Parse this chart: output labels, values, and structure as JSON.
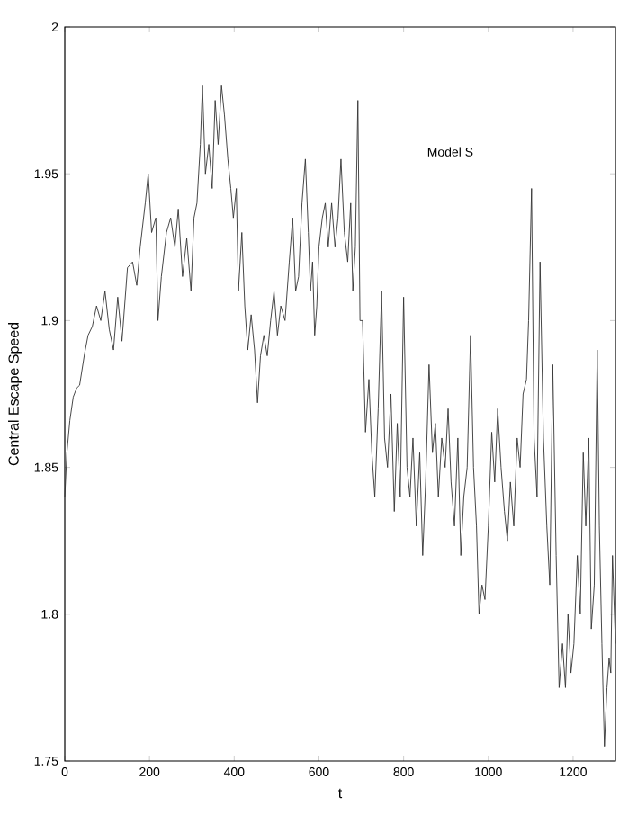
{
  "chart_data": {
    "type": "line",
    "xlabel": "t",
    "ylabel": "Central Escape Speed",
    "annotations": [
      "Model S"
    ],
    "xlim": [
      0,
      1300
    ],
    "ylim": [
      1.75,
      2
    ],
    "xticks": [
      0,
      200,
      400,
      600,
      800,
      1000,
      1200
    ],
    "yticks": [
      1.75,
      1.8,
      1.85,
      1.9,
      1.95,
      2
    ],
    "grid": false,
    "marker": "none",
    "line_style": "solid",
    "series": [
      {
        "color": "#333333",
        "x": [
          0,
          5,
          12,
          20,
          28,
          35,
          47,
          55,
          65,
          75,
          85,
          95,
          105,
          115,
          125,
          135,
          148,
          160,
          170,
          178,
          190,
          197,
          205,
          215,
          220,
          228,
          240,
          250,
          260,
          268,
          278,
          288,
          298,
          305,
          312,
          320,
          325,
          332,
          340,
          348,
          355,
          362,
          370,
          377,
          385,
          392,
          398,
          405,
          410,
          418,
          425,
          432,
          440,
          448,
          455,
          462,
          470,
          478,
          486,
          494,
          502,
          510,
          520,
          530,
          538,
          545,
          552,
          560,
          568,
          575,
          580,
          585,
          590,
          595,
          600,
          608,
          615,
          622,
          630,
          638,
          645,
          652,
          660,
          668,
          675,
          680,
          686,
          692,
          697,
          703,
          710,
          718,
          725,
          732,
          740,
          748,
          755,
          762,
          770,
          778,
          785,
          792,
          800,
          808,
          815,
          822,
          830,
          838,
          845,
          852,
          860,
          868,
          875,
          882,
          890,
          898,
          905,
          912,
          920,
          928,
          935,
          942,
          950,
          958,
          965,
          972,
          978,
          985,
          992,
          1000,
          1008,
          1015,
          1022,
          1030,
          1038,
          1045,
          1052,
          1060,
          1068,
          1075,
          1082,
          1090,
          1095,
          1102,
          1108,
          1115,
          1122,
          1130,
          1138,
          1145,
          1152,
          1160,
          1167,
          1175,
          1182,
          1188,
          1195,
          1202,
          1210,
          1217,
          1224,
          1230,
          1237,
          1243,
          1250,
          1257,
          1262,
          1268,
          1274,
          1280,
          1285,
          1289,
          1293,
          1300
        ],
        "values": [
          1.84,
          1.855,
          1.866,
          1.874,
          1.877,
          1.878,
          1.889,
          1.895,
          1.898,
          1.905,
          1.9,
          1.91,
          1.897,
          1.89,
          1.908,
          1.893,
          1.918,
          1.92,
          1.912,
          1.925,
          1.94,
          1.95,
          1.93,
          1.935,
          1.9,
          1.915,
          1.93,
          1.935,
          1.925,
          1.938,
          1.915,
          1.928,
          1.91,
          1.935,
          1.94,
          1.96,
          1.98,
          1.95,
          1.96,
          1.945,
          1.975,
          1.96,
          1.98,
          1.97,
          1.955,
          1.945,
          1.935,
          1.945,
          1.91,
          1.93,
          1.905,
          1.89,
          1.902,
          1.89,
          1.872,
          1.888,
          1.895,
          1.888,
          1.9,
          1.91,
          1.895,
          1.905,
          1.9,
          1.92,
          1.935,
          1.91,
          1.915,
          1.94,
          1.955,
          1.93,
          1.91,
          1.92,
          1.895,
          1.905,
          1.925,
          1.935,
          1.94,
          1.925,
          1.94,
          1.925,
          1.935,
          1.955,
          1.93,
          1.92,
          1.94,
          1.91,
          1.925,
          1.975,
          1.9,
          1.9,
          1.862,
          1.88,
          1.855,
          1.84,
          1.87,
          1.91,
          1.86,
          1.85,
          1.875,
          1.835,
          1.865,
          1.84,
          1.908,
          1.85,
          1.84,
          1.86,
          1.83,
          1.855,
          1.82,
          1.845,
          1.885,
          1.855,
          1.865,
          1.84,
          1.86,
          1.85,
          1.87,
          1.845,
          1.83,
          1.86,
          1.82,
          1.84,
          1.85,
          1.895,
          1.85,
          1.83,
          1.8,
          1.81,
          1.805,
          1.83,
          1.862,
          1.845,
          1.87,
          1.85,
          1.835,
          1.825,
          1.845,
          1.83,
          1.86,
          1.85,
          1.875,
          1.88,
          1.9,
          1.945,
          1.86,
          1.84,
          1.92,
          1.86,
          1.83,
          1.81,
          1.885,
          1.82,
          1.775,
          1.79,
          1.775,
          1.8,
          1.78,
          1.79,
          1.82,
          1.8,
          1.855,
          1.83,
          1.86,
          1.795,
          1.81,
          1.89,
          1.83,
          1.79,
          1.755,
          1.775,
          1.785,
          1.78,
          1.82,
          1.79
        ]
      }
    ]
  }
}
